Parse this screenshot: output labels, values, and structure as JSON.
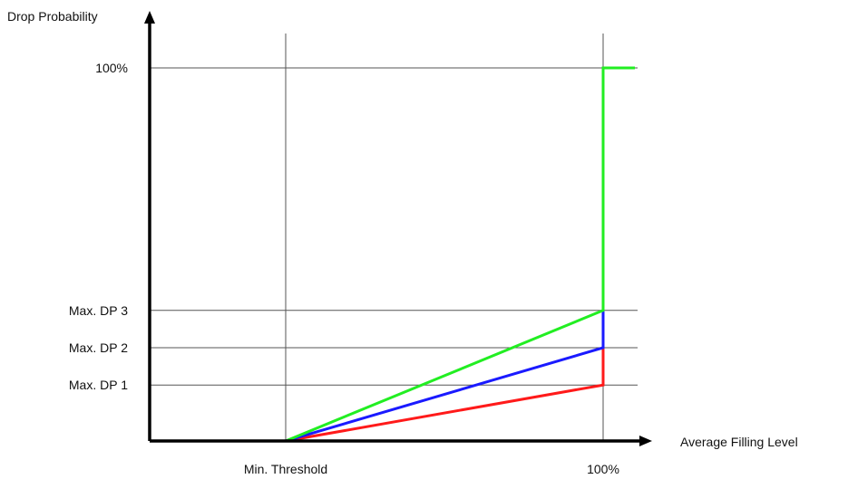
{
  "chart_data": {
    "type": "line",
    "ylabel": "Drop Probability",
    "xlabel": "Average Filling  Level",
    "x_ticks": [
      {
        "value": 0.3,
        "label": "Min. Threshold"
      },
      {
        "value": 1.0,
        "label": "100%"
      }
    ],
    "y_ticks": [
      {
        "value": 0.15,
        "label": "Max. DP 1"
      },
      {
        "value": 0.25,
        "label": "Max. DP 2"
      },
      {
        "value": 0.35,
        "label": "Max. DP 3"
      },
      {
        "value": 1.0,
        "label": "100%"
      }
    ],
    "xlim": [
      0,
      1.08
    ],
    "ylim": [
      0,
      1.1
    ],
    "grid": true,
    "series": [
      {
        "color": "#ff1a1a",
        "points": [
          [
            0,
            0
          ],
          [
            0.3,
            0
          ],
          [
            1.0,
            0.15
          ],
          [
            1.0,
            0.25
          ]
        ]
      },
      {
        "color": "#1a1aff",
        "points": [
          [
            0,
            0
          ],
          [
            0.3,
            0
          ],
          [
            1.0,
            0.25
          ],
          [
            1.0,
            0.35
          ]
        ]
      },
      {
        "color": "#22ee22",
        "points": [
          [
            0,
            0
          ],
          [
            0.3,
            0
          ],
          [
            1.0,
            0.35
          ],
          [
            1.0,
            1.0
          ],
          [
            1.07,
            1.0
          ]
        ]
      }
    ]
  }
}
